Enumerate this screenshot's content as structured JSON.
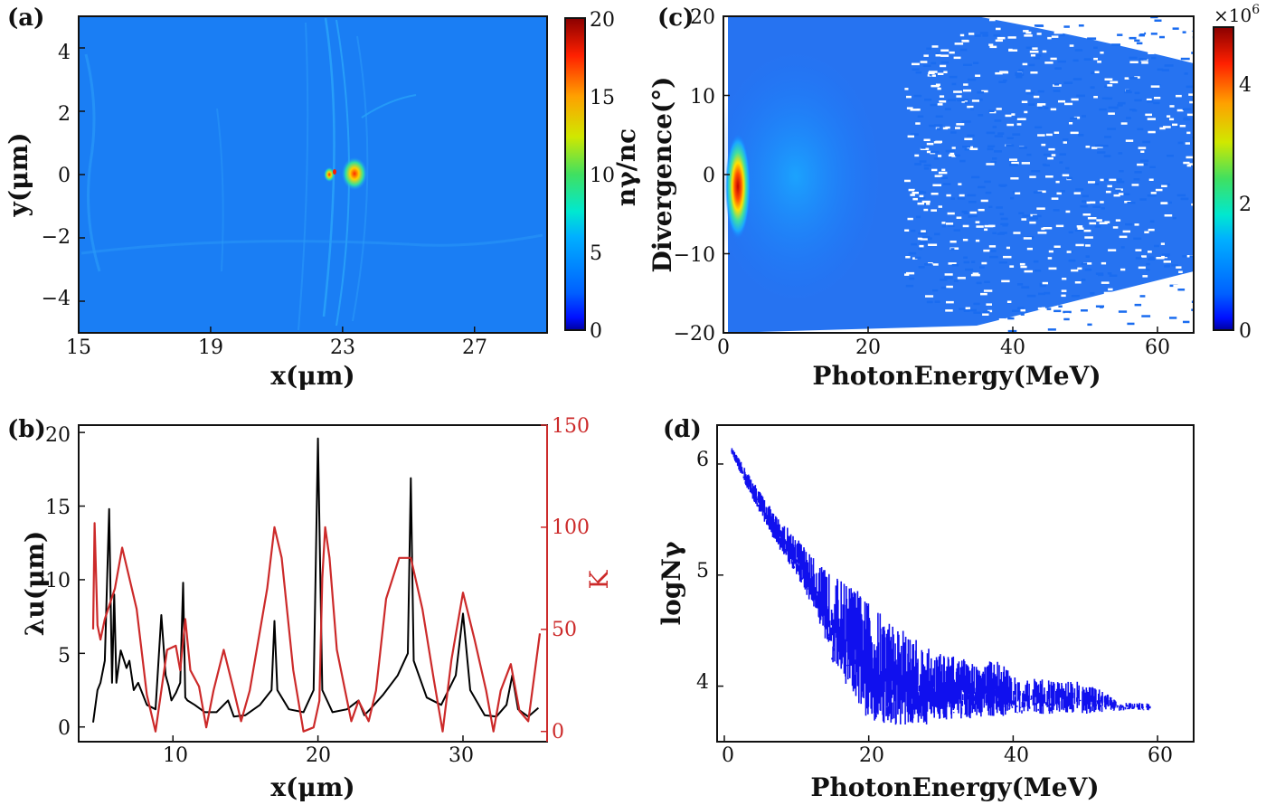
{
  "chart_data": [
    {
      "panel": "(a)",
      "type": "heatmap",
      "xlabel": "x(μm)",
      "ylabel": "y(μm)",
      "xlim": [
        15,
        29.2
      ],
      "ylim": [
        -5,
        5
      ],
      "xticks": [
        15,
        19,
        23,
        27
      ],
      "yticks": [
        4,
        2,
        0,
        -2,
        -4
      ],
      "yticklabels": [
        "4",
        "2",
        "0",
        "−2",
        "−4"
      ],
      "colorbar": {
        "label": "nγ/nc",
        "range": [
          0,
          20
        ],
        "ticks": [
          20,
          15,
          10,
          5,
          0
        ]
      },
      "hotspot": {
        "x": 22.6,
        "y": 0.0,
        "value": 20
      }
    },
    {
      "panel": "(b)",
      "type": "line",
      "xlabel": "x(μm)",
      "ylabel": "λu(μm)",
      "ylabel_right": "K",
      "xlim": [
        3.5,
        35.8
      ],
      "ylim": [
        -1,
        20.5
      ],
      "ylim_right": [
        -5,
        150
      ],
      "xticks": [
        10,
        20,
        30
      ],
      "yticks": [
        20,
        15,
        10,
        5,
        0
      ],
      "yticks_right": [
        150,
        100,
        50,
        0
      ],
      "series": [
        {
          "axis": "left",
          "color": "#000000",
          "x": [
            4.5,
            4.8,
            5.0,
            5.3,
            5.6,
            5.8,
            5.95,
            6.1,
            6.4,
            6.8,
            7.0,
            7.3,
            7.6,
            8.2,
            8.8,
            9.2,
            9.5,
            9.7,
            9.9,
            10.2,
            10.5,
            10.7,
            10.85,
            11.0,
            11.5,
            12.2,
            13.0,
            13.5,
            13.8,
            14.2,
            15.0,
            16.0,
            16.8,
            17.0,
            17.2,
            18.0,
            19.0,
            19.7,
            20.0,
            20.3,
            21.0,
            22.0,
            22.8,
            23.2,
            23.6,
            24.5,
            25.5,
            26.2,
            26.4,
            26.6,
            27.5,
            28.5,
            29.5,
            30.0,
            30.5,
            31.5,
            32.3,
            33.0,
            33.4,
            33.8,
            34.5,
            35.2
          ],
          "y": [
            0.3,
            2.5,
            3.0,
            4.5,
            14.8,
            3.0,
            9.0,
            3.0,
            5.2,
            4.0,
            4.5,
            2.5,
            3.0,
            1.5,
            1.2,
            7.6,
            3.5,
            2.8,
            1.8,
            2.3,
            3.0,
            9.8,
            2.0,
            1.8,
            1.5,
            1.0,
            1.0,
            1.5,
            1.8,
            0.7,
            0.8,
            1.5,
            2.5,
            7.2,
            2.5,
            1.2,
            1.0,
            2.5,
            19.6,
            2.5,
            1.0,
            1.2,
            1.8,
            0.8,
            1.2,
            2.2,
            3.5,
            5.0,
            16.9,
            4.5,
            2.0,
            1.5,
            3.5,
            7.7,
            2.5,
            0.8,
            0.7,
            1.5,
            3.5,
            1.2,
            0.7,
            1.3
          ]
        },
        {
          "axis": "right",
          "color": "#cc2a2a",
          "x": [
            4.5,
            4.6,
            4.8,
            5.0,
            5.3,
            6.0,
            6.5,
            7.5,
            8.2,
            8.8,
            9.2,
            9.6,
            10.2,
            10.5,
            10.85,
            11.2,
            11.8,
            12.3,
            12.8,
            13.5,
            14.2,
            14.7,
            15.3,
            16.5,
            17.0,
            17.5,
            18.3,
            19.0,
            19.7,
            20.1,
            20.3,
            20.5,
            20.8,
            21.3,
            22.3,
            22.8,
            23.5,
            24.0,
            24.7,
            25.6,
            26.4,
            27.2,
            28.0,
            28.6,
            29.2,
            30.0,
            30.8,
            31.6,
            32.1,
            32.6,
            33.3,
            33.9,
            34.5,
            35.3
          ],
          "y": [
            50,
            102,
            52,
            45,
            55,
            70,
            90,
            60,
            18,
            0,
            20,
            40,
            42,
            30,
            55,
            30,
            22,
            2,
            20,
            40,
            20,
            5,
            20,
            70,
            100,
            85,
            30,
            0,
            2,
            15,
            75,
            100,
            85,
            40,
            5,
            15,
            5,
            20,
            65,
            85,
            85,
            60,
            25,
            0,
            35,
            68,
            45,
            20,
            0,
            20,
            33,
            10,
            5,
            48
          ]
        }
      ]
    },
    {
      "panel": "(c)",
      "type": "heatmap",
      "xlabel": "PhotonEnergy(MeV)",
      "ylabel": "Divergence(°)",
      "xlim": [
        0,
        65
      ],
      "ylim": [
        -20,
        20
      ],
      "xticks": [
        0,
        20,
        40,
        60
      ],
      "yticks": [
        20,
        10,
        0,
        -10,
        -20
      ],
      "yticklabels": [
        "20",
        "10",
        "0",
        "−10",
        "−20"
      ],
      "colorbar": {
        "label": "",
        "multiplier": "×10",
        "exponent": "6",
        "range": [
          0,
          4.8
        ],
        "ticks": [
          4,
          2,
          0
        ]
      },
      "peak": {
        "x": 2,
        "y": -1.5
      }
    },
    {
      "panel": "(d)",
      "type": "line",
      "xlabel": "PhotonEnergy(MeV)",
      "ylabel": "logNγ",
      "xlim": [
        -1,
        65
      ],
      "ylim": [
        3.5,
        6.35
      ],
      "xticks": [
        0,
        20,
        40,
        60
      ],
      "yticks": [
        6,
        5,
        4
      ],
      "series": [
        {
          "color": "#1010ee",
          "x": [
            1,
            3,
            5,
            7,
            10,
            13,
            15,
            18,
            20,
            23,
            25,
            28,
            30,
            33,
            35,
            38,
            40,
            45,
            50,
            55,
            59
          ],
          "y_upper": [
            6.15,
            5.95,
            5.75,
            5.55,
            5.35,
            5.1,
            5.0,
            4.9,
            4.75,
            4.6,
            4.5,
            4.35,
            4.3,
            4.25,
            4.2,
            4.25,
            4.1,
            4.05,
            4.05,
            3.85,
            3.85
          ],
          "y_lower": [
            6.1,
            5.8,
            5.55,
            5.3,
            5.0,
            4.6,
            4.2,
            3.85,
            3.7,
            3.65,
            3.65,
            3.65,
            3.7,
            3.7,
            3.72,
            3.72,
            3.75,
            3.75,
            3.75,
            3.78,
            3.78
          ]
        }
      ]
    }
  ]
}
